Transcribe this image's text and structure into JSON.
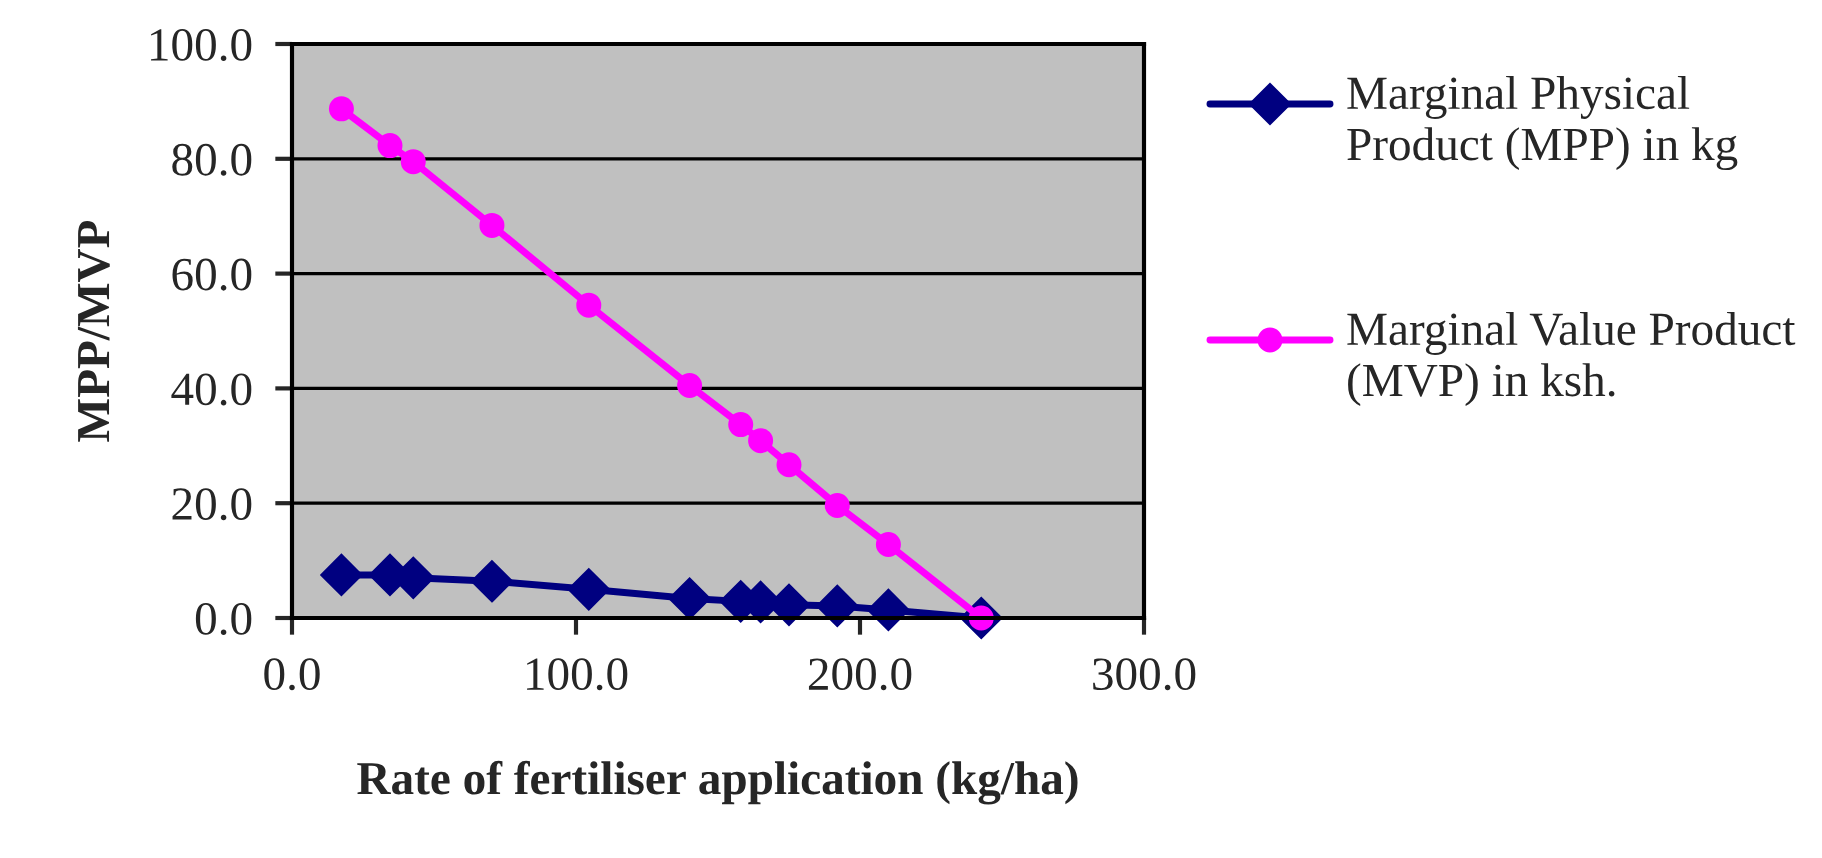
{
  "chart_data": {
    "type": "line",
    "xlabel": "Rate of fertiliser application (kg/ha)",
    "ylabel": "MPP/MVP",
    "x": [
      17.4,
      34.5,
      42.7,
      70.4,
      104.5,
      140,
      158,
      165,
      175,
      192,
      210,
      242.7
    ],
    "series": [
      {
        "name": "Marginal Physical Product (MPP) in kg",
        "color": "#000080",
        "marker": "diamond",
        "values": [
          7.5,
          7.5,
          7.0,
          6.4,
          5.0,
          3.4,
          2.9,
          2.8,
          2.3,
          2.1,
          1.4,
          0.0
        ]
      },
      {
        "name": "Marginal Value Product (MVP) in ksh.",
        "color": "#ff00ff",
        "marker": "circle",
        "values": [
          88.7,
          82.3,
          79.5,
          68.4,
          54.5,
          40.5,
          33.7,
          30.9,
          26.7,
          19.6,
          12.8,
          0.0
        ]
      }
    ],
    "xlim": [
      0,
      300
    ],
    "xticks": [
      {
        "value": 0,
        "label": "0.0"
      },
      {
        "value": 100,
        "label": "100.0"
      },
      {
        "value": 200,
        "label": "200.0"
      },
      {
        "value": 300,
        "label": "300.0"
      }
    ],
    "ylim": [
      0,
      100
    ],
    "yticks": [
      {
        "value": 0,
        "label": "0.0"
      },
      {
        "value": 20,
        "label": "20.0"
      },
      {
        "value": 40,
        "label": "40.0"
      },
      {
        "value": 60,
        "label": "60.0"
      },
      {
        "value": 80,
        "label": "80.0"
      },
      {
        "value": 100,
        "label": "100.0"
      }
    ],
    "grid": "y",
    "legend": "right",
    "line_style": "solid"
  }
}
